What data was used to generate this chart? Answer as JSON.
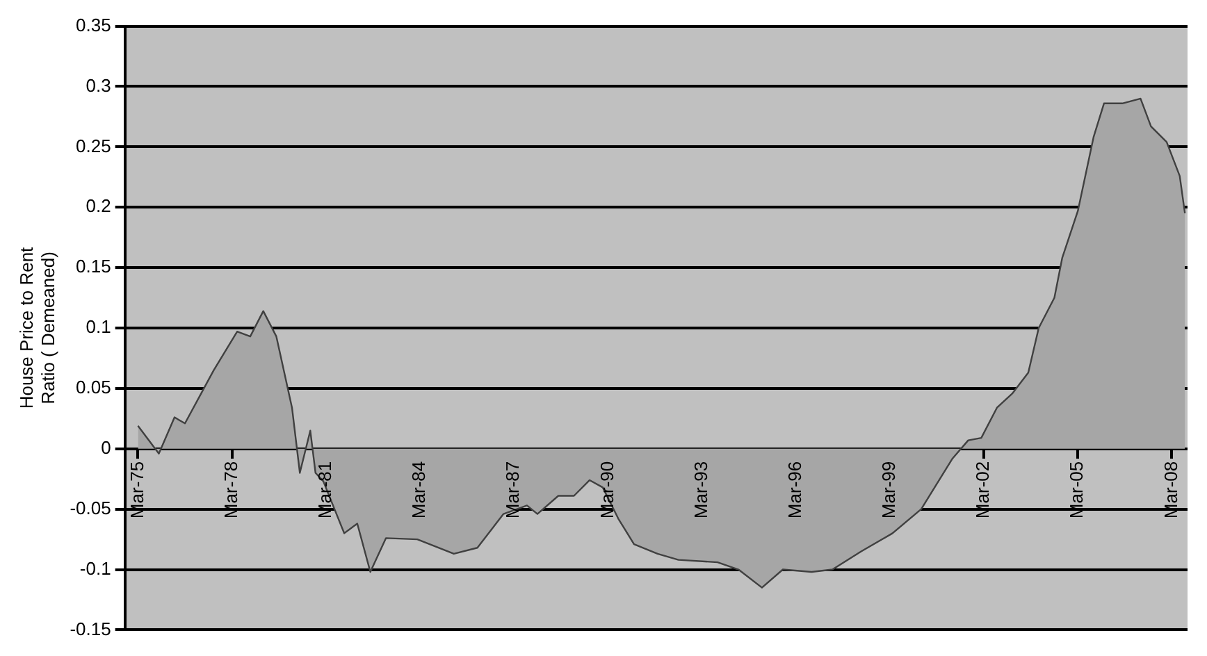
{
  "chart_data": {
    "type": "area",
    "ylabel": "House Price to Rent Ratio ( Demeaned)",
    "x": [
      "1975-03",
      "1975-11",
      "1976-05",
      "1976-09",
      "1977-04",
      "1977-08",
      "1978-05",
      "1978-10",
      "1979-03",
      "1979-08",
      "1980-02",
      "1980-05",
      "1980-09",
      "1980-11",
      "1981-02",
      "1981-10",
      "1982-03",
      "1982-08",
      "1983-02",
      "1984-02",
      "1985-04",
      "1986-01",
      "1986-11",
      "1987-08",
      "1987-12",
      "1988-08",
      "1989-02",
      "1989-08",
      "1990-01",
      "1990-07",
      "1991-01",
      "1991-10",
      "1992-06",
      "1993-09",
      "1994-05",
      "1995-02",
      "1995-10",
      "1996-09",
      "1997-05",
      "1998-04",
      "1999-04",
      "2000-03",
      "2001-03",
      "2001-09",
      "2002-02",
      "2002-08",
      "2003-02",
      "2003-08",
      "2003-12",
      "2004-06",
      "2004-09",
      "2005-03",
      "2005-09",
      "2006-01",
      "2006-08",
      "2007-03",
      "2007-07",
      "2008-01",
      "2008-06",
      "2008-08"
    ],
    "series": [
      {
        "color": "#a6a6a6",
        "values": [
          0.019,
          -0.004,
          0.026,
          0.021,
          0.049,
          0.065,
          0.097,
          0.093,
          0.114,
          0.093,
          0.034,
          -0.02,
          0.015,
          -0.02,
          -0.027,
          -0.07,
          -0.062,
          -0.102,
          -0.074,
          -0.075,
          -0.087,
          -0.082,
          -0.054,
          -0.047,
          -0.054,
          -0.039,
          -0.039,
          -0.026,
          -0.032,
          -0.058,
          -0.079,
          -0.087,
          -0.092,
          -0.094,
          -0.1,
          -0.115,
          -0.1,
          -0.102,
          -0.1,
          -0.085,
          -0.07,
          -0.05,
          -0.008,
          0.007,
          0.009,
          0.034,
          0.046,
          0.063,
          0.1,
          0.125,
          0.158,
          0.197,
          0.258,
          0.286,
          0.286,
          0.29,
          0.267,
          0.254,
          0.226,
          0.195
        ]
      }
    ],
    "xlim": [
      "1974-10",
      "2008-09"
    ],
    "xticks": [
      {
        "value": "1975-03",
        "label": "Mar-75"
      },
      {
        "value": "1978-03",
        "label": "Mar-78"
      },
      {
        "value": "1981-03",
        "label": "Mar-81"
      },
      {
        "value": "1984-03",
        "label": "Mar-84"
      },
      {
        "value": "1987-03",
        "label": "Mar-87"
      },
      {
        "value": "1990-03",
        "label": "Mar-90"
      },
      {
        "value": "1993-03",
        "label": "Mar-93"
      },
      {
        "value": "1996-03",
        "label": "Mar-96"
      },
      {
        "value": "1999-03",
        "label": "Mar-99"
      },
      {
        "value": "2002-03",
        "label": "Mar-02"
      },
      {
        "value": "2005-03",
        "label": "Mar-05"
      },
      {
        "value": "2008-03",
        "label": "Mar-08"
      }
    ],
    "ylim": [
      -0.15,
      0.35
    ],
    "yticks": [
      -0.15,
      -0.1,
      -0.05,
      0,
      0.05,
      0.1,
      0.15,
      0.2,
      0.25,
      0.3,
      0.35
    ],
    "grid": "y",
    "legend": false,
    "marker": "none",
    "line_style": "solid"
  }
}
